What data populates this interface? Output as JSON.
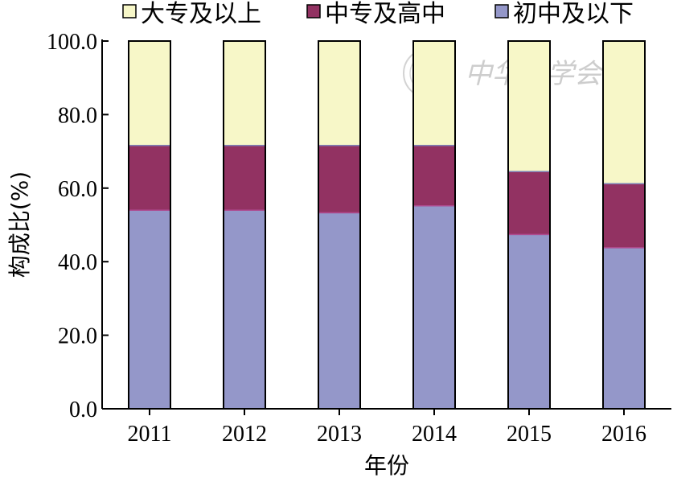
{
  "chart_data": {
    "type": "bar",
    "stacked": true,
    "categories": [
      "2011",
      "2012",
      "2013",
      "2014",
      "2015",
      "2016"
    ],
    "series": [
      {
        "name": "初中及以下",
        "color": "#9497C9",
        "values": [
          54.0,
          54.0,
          53.3,
          55.2,
          47.4,
          43.8
        ]
      },
      {
        "name": "中专及高中",
        "color": "#923262",
        "values": [
          17.6,
          17.6,
          18.3,
          16.4,
          17.1,
          17.4
        ]
      },
      {
        "name": "大专及以上",
        "color": "#F7F7C8",
        "values": [
          28.4,
          28.4,
          28.4,
          28.4,
          35.5,
          38.8
        ]
      }
    ],
    "legend_order": [
      "大专及以上",
      "中专及高中",
      "初中及以下"
    ],
    "legend_position": "top",
    "xlabel": "年份",
    "ylabel": "构成比(%)",
    "ylim": [
      0,
      100
    ],
    "yticks": [
      "0.0",
      "20.0",
      "40.0",
      "60.0",
      "80.0",
      "100.0"
    ],
    "grid": false
  },
  "watermark": {
    "text": "中华医学会",
    "logo_icon": "chinese-medical-association-seal-icon"
  }
}
